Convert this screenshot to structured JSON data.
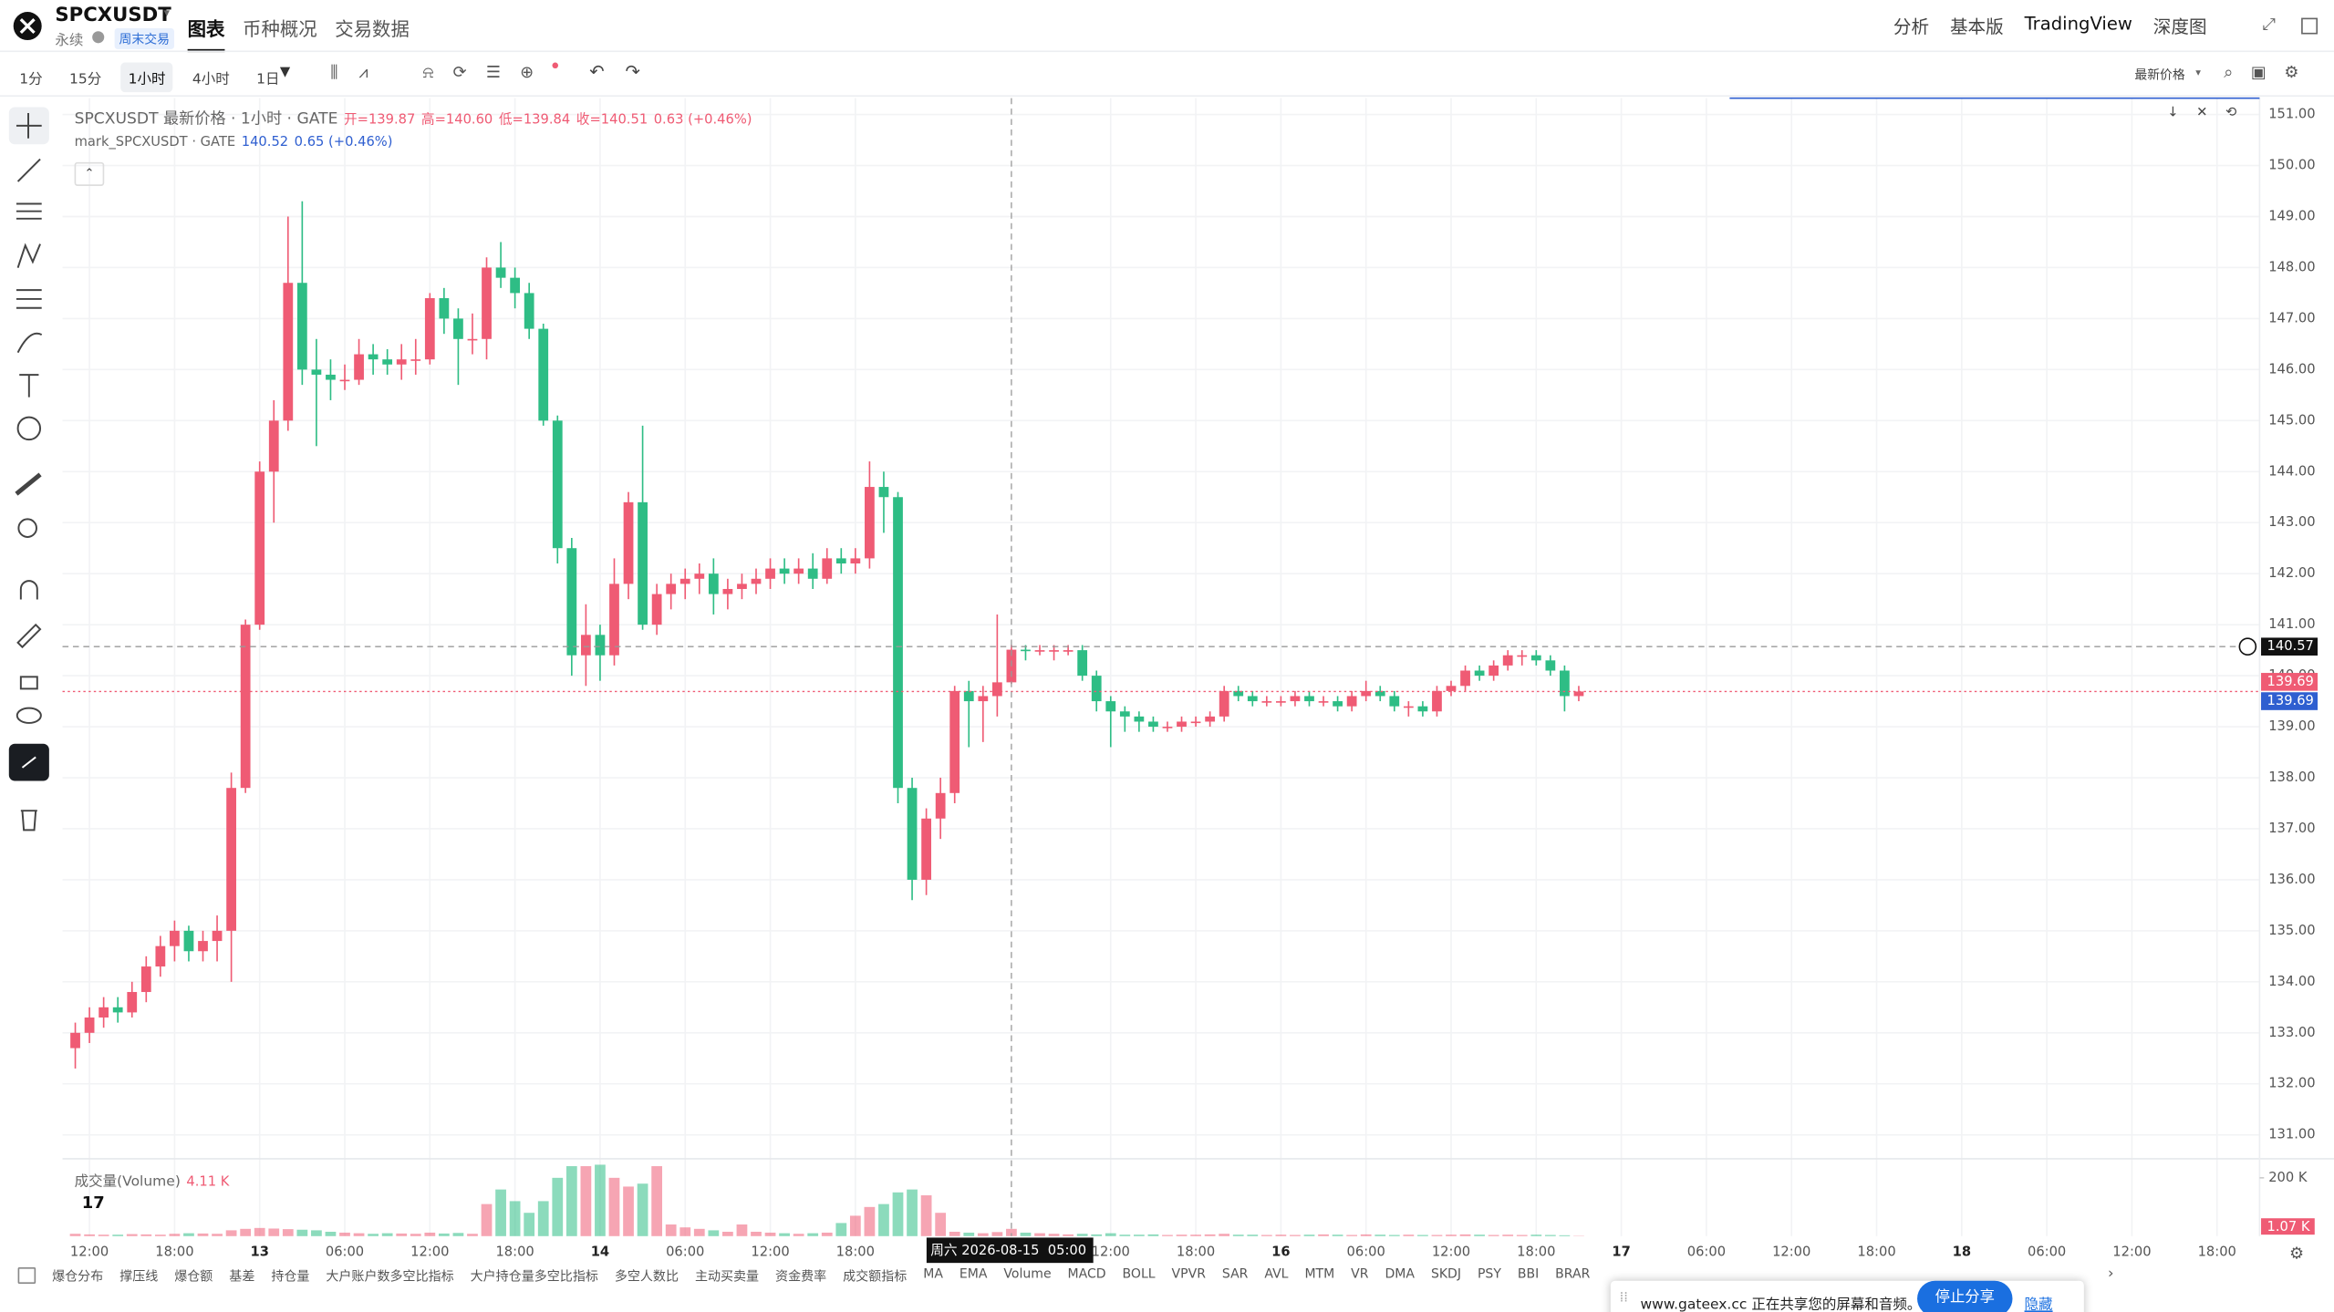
{
  "header": {
    "symbol": "SPCXUSDT",
    "contract": "永续",
    "badge": "周末交易",
    "tabs": [
      "图表",
      "币种概况",
      "交易数据"
    ],
    "right_tabs": [
      "分析",
      "基本版",
      "TradingView",
      "深度图"
    ]
  },
  "toolbar": {
    "intervals": [
      "1分",
      "15分",
      "1小时",
      "4小时",
      "1日"
    ],
    "price_type": "最新价格"
  },
  "chart_data": {
    "type": "candlestick",
    "title": "SPCXUSDT 最新价格 · 1小时 · GATE",
    "ohlc": [
      "开=139.87",
      "高=140.60",
      "低=139.84",
      "收=140.51"
    ],
    "change": "0.63 (+0.46%)",
    "mark_title": "mark_SPCXUSDT · GATE",
    "mark_value": "140.52",
    "mark_change": "0.65 (+0.46%)",
    "open": [
      132.7,
      133.0,
      133.3,
      133.5,
      133.4,
      133.8,
      134.3,
      134.7,
      135.0,
      134.6,
      134.8,
      135.0,
      137.8,
      141.0,
      144.0,
      145.0,
      147.7,
      146.0,
      145.9,
      145.8,
      145.8,
      146.3,
      146.2,
      146.1,
      146.2,
      146.2,
      147.4,
      147.0,
      146.6,
      146.6,
      148.0,
      147.8,
      147.5,
      146.8,
      145.0,
      142.5,
      140.4,
      140.8,
      140.4,
      141.8,
      143.4,
      141.0,
      141.6,
      141.8,
      141.9,
      142.0,
      141.6,
      141.7,
      141.8,
      141.9,
      142.1,
      142.0,
      142.1,
      141.9,
      142.3,
      142.2,
      142.3,
      143.7,
      143.5,
      137.8,
      136.0,
      137.2,
      137.7,
      139.7,
      139.5,
      139.6,
      139.87,
      140.51,
      140.5,
      140.5,
      140.5,
      140.5,
      140.0,
      139.5,
      139.3,
      139.2,
      139.1,
      139.0,
      139.0,
      139.1,
      139.1,
      139.2,
      139.7,
      139.6,
      139.5,
      139.5,
      139.5,
      139.6,
      139.5,
      139.5,
      139.4,
      139.6,
      139.7,
      139.6,
      139.4,
      139.4,
      139.3,
      139.7,
      139.8,
      140.1,
      140.0,
      140.2,
      140.4,
      140.4,
      140.3,
      140.1,
      139.6
    ],
    "high": [
      133.2,
      133.5,
      133.7,
      133.7,
      134.0,
      134.5,
      134.9,
      135.2,
      135.1,
      135.0,
      135.3,
      138.1,
      141.1,
      144.2,
      145.4,
      149.0,
      149.3,
      146.6,
      146.2,
      146.1,
      146.6,
      146.5,
      146.4,
      146.5,
      146.6,
      147.5,
      147.6,
      147.2,
      147.1,
      148.2,
      148.5,
      148.0,
      147.7,
      146.9,
      145.1,
      142.7,
      141.4,
      141.0,
      142.3,
      143.6,
      144.9,
      141.8,
      142.0,
      142.1,
      142.2,
      142.3,
      141.9,
      142.0,
      142.1,
      142.3,
      142.3,
      142.3,
      142.4,
      142.5,
      142.5,
      142.5,
      144.2,
      144.0,
      143.6,
      138.0,
      137.4,
      138.0,
      139.8,
      139.9,
      139.8,
      141.2,
      140.6,
      140.6,
      140.6,
      140.6,
      140.6,
      140.6,
      140.1,
      139.6,
      139.4,
      139.3,
      139.2,
      139.1,
      139.2,
      139.2,
      139.3,
      139.8,
      139.8,
      139.7,
      139.6,
      139.6,
      139.7,
      139.7,
      139.6,
      139.6,
      139.7,
      139.9,
      139.8,
      139.7,
      139.5,
      139.5,
      139.8,
      139.9,
      140.2,
      140.2,
      140.3,
      140.5,
      140.5,
      140.5,
      140.4,
      140.2,
      139.8
    ],
    "low": [
      132.3,
      132.8,
      133.1,
      133.2,
      133.3,
      133.6,
      134.1,
      134.4,
      134.4,
      134.4,
      134.4,
      134.0,
      137.7,
      140.9,
      143.0,
      144.8,
      145.7,
      144.5,
      145.4,
      145.6,
      145.7,
      145.9,
      145.9,
      145.8,
      145.9,
      146.1,
      146.7,
      145.7,
      146.3,
      146.2,
      147.6,
      147.2,
      146.6,
      144.9,
      142.2,
      140.0,
      139.8,
      139.9,
      140.2,
      141.5,
      140.9,
      140.8,
      141.3,
      141.5,
      141.6,
      141.2,
      141.3,
      141.5,
      141.6,
      141.7,
      141.8,
      141.8,
      141.7,
      141.8,
      142.0,
      142.0,
      142.1,
      142.8,
      137.5,
      135.6,
      135.7,
      136.8,
      137.5,
      138.6,
      138.7,
      139.2,
      139.84,
      140.3,
      140.4,
      140.3,
      140.4,
      139.9,
      139.3,
      138.6,
      138.9,
      138.9,
      138.9,
      138.9,
      138.9,
      139.0,
      139.0,
      139.1,
      139.5,
      139.4,
      139.4,
      139.4,
      139.4,
      139.4,
      139.4,
      139.3,
      139.3,
      139.5,
      139.5,
      139.3,
      139.2,
      139.2,
      139.2,
      139.6,
      139.7,
      139.9,
      139.9,
      140.1,
      140.2,
      140.2,
      140.0,
      139.3,
      139.5
    ],
    "close": [
      133.0,
      133.3,
      133.5,
      133.4,
      133.8,
      134.3,
      134.7,
      135.0,
      134.6,
      134.8,
      135.0,
      137.8,
      141.0,
      144.0,
      145.0,
      147.7,
      146.0,
      145.9,
      145.8,
      145.8,
      146.3,
      146.2,
      146.1,
      146.2,
      146.2,
      147.4,
      147.0,
      146.6,
      146.6,
      148.0,
      147.8,
      147.5,
      146.8,
      145.0,
      142.5,
      140.4,
      140.8,
      140.4,
      141.8,
      143.4,
      141.0,
      141.6,
      141.8,
      141.9,
      142.0,
      141.6,
      141.7,
      141.8,
      141.9,
      142.1,
      142.0,
      142.1,
      141.9,
      142.3,
      142.2,
      142.3,
      143.7,
      143.5,
      137.8,
      136.0,
      137.2,
      137.7,
      139.7,
      139.5,
      139.6,
      139.87,
      140.51,
      140.5,
      140.5,
      140.5,
      140.5,
      140.0,
      139.5,
      139.3,
      139.2,
      139.1,
      139.0,
      139.0,
      139.1,
      139.1,
      139.2,
      139.7,
      139.6,
      139.5,
      139.5,
      139.5,
      139.6,
      139.5,
      139.5,
      139.4,
      139.6,
      139.7,
      139.6,
      139.4,
      139.4,
      139.3,
      139.7,
      139.8,
      140.1,
      140.0,
      140.2,
      140.4,
      140.4,
      140.3,
      140.1,
      139.6,
      139.69
    ],
    "up_color": "#ef5b74",
    "down_color": "#2ebd85",
    "ylim": [
      130.56,
      151.32
    ],
    "yticks": [
      {
        "value": 131,
        "label": "131.00"
      },
      {
        "value": 132,
        "label": "132.00"
      },
      {
        "value": 133,
        "label": "133.00"
      },
      {
        "value": 134,
        "label": "134.00"
      },
      {
        "value": 135,
        "label": "135.00"
      },
      {
        "value": 136,
        "label": "136.00"
      },
      {
        "value": 137,
        "label": "137.00"
      },
      {
        "value": 138,
        "label": "138.00"
      },
      {
        "value": 139,
        "label": "139.00"
      },
      {
        "value": 140,
        "label": "140.00"
      },
      {
        "value": 141,
        "label": "141.00"
      },
      {
        "value": 142,
        "label": "142.00"
      },
      {
        "value": 143,
        "label": "143.00"
      },
      {
        "value": 144,
        "label": "144.00"
      },
      {
        "value": 145,
        "label": "145.00"
      },
      {
        "value": 146,
        "label": "146.00"
      },
      {
        "value": 147,
        "label": "147.00"
      },
      {
        "value": 148,
        "label": "148.00"
      },
      {
        "value": 149,
        "label": "149.00"
      },
      {
        "value": 150,
        "label": "150.00"
      },
      {
        "value": 151,
        "label": "151.00"
      }
    ],
    "xlim": [
      -0.9,
      154
    ],
    "xticks": [
      {
        "value": 1,
        "label": "12:00"
      },
      {
        "value": 7,
        "label": "18:00"
      },
      {
        "value": 13,
        "label": "13"
      },
      {
        "value": 19,
        "label": "06:00"
      },
      {
        "value": 25,
        "label": "12:00"
      },
      {
        "value": 31,
        "label": "18:00"
      },
      {
        "value": 37,
        "label": "14"
      },
      {
        "value": 43,
        "label": "06:00"
      },
      {
        "value": 49,
        "label": "12:00"
      },
      {
        "value": 55,
        "label": "18:00"
      },
      {
        "value": 73,
        "label": "12:00"
      },
      {
        "value": 79,
        "label": "18:00"
      },
      {
        "value": 85,
        "label": "16"
      },
      {
        "value": 91,
        "label": "06:00"
      },
      {
        "value": 97,
        "label": "12:00"
      },
      {
        "value": 103,
        "label": "18:00"
      },
      {
        "value": 109,
        "label": "17"
      },
      {
        "value": 115,
        "label": "06:00"
      },
      {
        "value": 121,
        "label": "12:00"
      },
      {
        "value": 127,
        "label": "18:00"
      },
      {
        "value": 133,
        "label": "18"
      },
      {
        "value": 139,
        "label": "06:00"
      },
      {
        "value": 145,
        "label": "12:00"
      },
      {
        "value": 151,
        "label": "18:00"
      }
    ],
    "grid": true,
    "price_lines": [
      {
        "value": 140.57,
        "label": "140.57",
        "color": "#111111"
      },
      {
        "value": 139.69,
        "label": "139.69",
        "color": "#ef5b74"
      },
      {
        "value": 139.69,
        "label": "139.69",
        "color": "#2f5fd0"
      }
    ],
    "crosshair": {
      "x": 66,
      "label": "周六 2026-08-15  05:00"
    },
    "volume": {
      "title": "成交量(Volume)",
      "legend_value": "4.11 K",
      "values": [
        8,
        6,
        5,
        5,
        7,
        6,
        5,
        8,
        10,
        9,
        8,
        20,
        25,
        28,
        26,
        24,
        22,
        20,
        15,
        12,
        10,
        8,
        10,
        9,
        8,
        12,
        9,
        11,
        8,
        110,
        160,
        120,
        80,
        120,
        200,
        240,
        240,
        245,
        200,
        170,
        180,
        240,
        40,
        30,
        25,
        20,
        15,
        40,
        15,
        12,
        10,
        8,
        10,
        12,
        45,
        70,
        100,
        110,
        150,
        160,
        140,
        80,
        15,
        12,
        10,
        14,
        25,
        12,
        10,
        8,
        6,
        8,
        6,
        10,
        5,
        5,
        6,
        4,
        5,
        5,
        6,
        8,
        5,
        5,
        4,
        5,
        4,
        5,
        6,
        5,
        4,
        6,
        5,
        4,
        5,
        4,
        4,
        5,
        6,
        5,
        4,
        5,
        4,
        5,
        4,
        3,
        1.07
      ],
      "ylim": [
        0,
        250
      ],
      "yticks": [
        {
          "value": 200,
          "label": "200 K"
        }
      ],
      "last_label": {
        "value": 1.07,
        "label": "1.07 K"
      }
    }
  },
  "indicator_tabs": [
    "爆仓分布",
    "撑压线",
    "爆仓额",
    "基差",
    "持仓量",
    "大户账户数多空比指标",
    "大户持仓量多空比指标",
    "多空人数比",
    "主动买卖量",
    "资金费率",
    "成交额指标",
    "MA",
    "EMA",
    "Volume",
    "MACD",
    "BOLL",
    "VPVR",
    "SAR",
    "AVL",
    "MTM",
    "VR",
    "DMA",
    "SKDJ",
    "PSY",
    "BBI",
    "BRAR"
  ],
  "share_bar": {
    "text": "www.gateex.cc 正在共享您的屏幕和音频。",
    "stop": "停止分享",
    "hide": "隐藏"
  }
}
